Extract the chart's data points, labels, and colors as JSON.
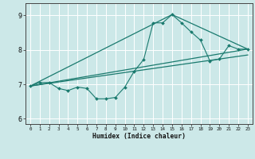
{
  "xlabel": "Humidex (Indice chaleur)",
  "xlim": [
    -0.5,
    23.5
  ],
  "ylim": [
    5.85,
    9.35
  ],
  "yticks": [
    6,
    7,
    8,
    9
  ],
  "xticks": [
    0,
    1,
    2,
    3,
    4,
    5,
    6,
    7,
    8,
    9,
    10,
    11,
    12,
    13,
    14,
    15,
    16,
    17,
    18,
    19,
    20,
    21,
    22,
    23
  ],
  "bg_color": "#cce8e8",
  "grid_color": "#ffffff",
  "line_color": "#1a7a6e",
  "line1_x": [
    0,
    1,
    2,
    3,
    4,
    5,
    6,
    7,
    8,
    9,
    10,
    11,
    12,
    13,
    14,
    15,
    16,
    17,
    18,
    19,
    20,
    21,
    22,
    23
  ],
  "line1_y": [
    6.95,
    7.05,
    7.05,
    6.88,
    6.82,
    6.92,
    6.88,
    6.58,
    6.58,
    6.62,
    6.92,
    7.38,
    7.72,
    8.78,
    8.78,
    9.02,
    8.78,
    8.52,
    8.28,
    7.68,
    7.73,
    8.12,
    8.02,
    8.02
  ],
  "line2_x": [
    0,
    23
  ],
  "line2_y": [
    6.95,
    8.02
  ],
  "line3_x": [
    0,
    15,
    23
  ],
  "line3_y": [
    6.95,
    9.02,
    8.02
  ],
  "line4_x": [
    0,
    23
  ],
  "line4_y": [
    6.95,
    7.85
  ]
}
